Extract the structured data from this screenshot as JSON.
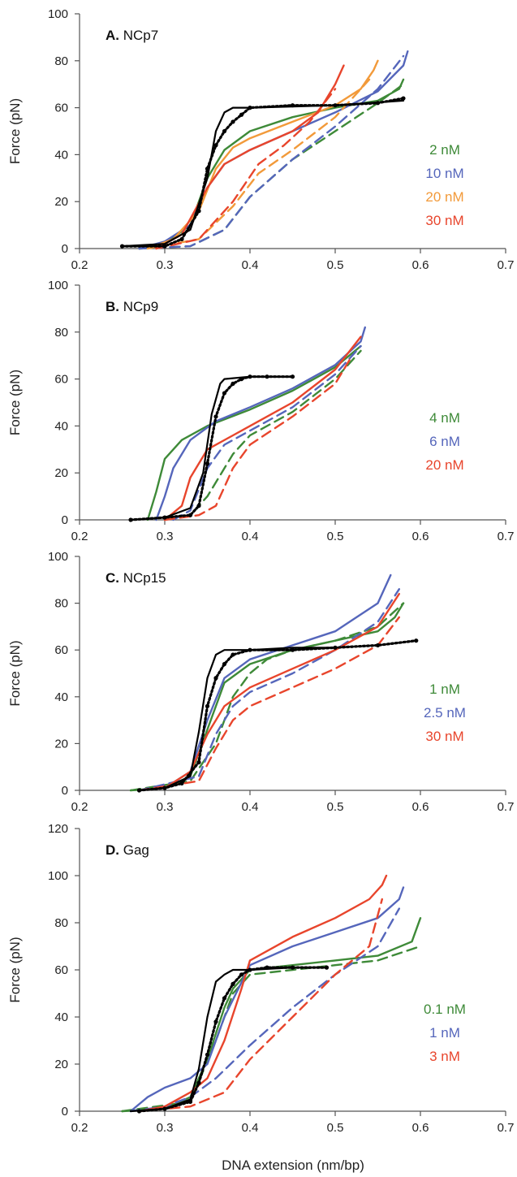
{
  "figure": {
    "xlabel": "DNA extension (nm/bp)",
    "ylabel": "Force (pN)"
  },
  "chart_data": [
    {
      "type": "line",
      "letter": "A.",
      "title": "NCp7",
      "xlim": [
        0.2,
        0.7
      ],
      "ylim": [
        0,
        100
      ],
      "xticks": [
        "0.2",
        "0.3",
        "0.4",
        "0.5",
        "0.6",
        "0.7"
      ],
      "yticks": [
        "0",
        "20",
        "40",
        "60",
        "80",
        "100"
      ],
      "grid": false,
      "legend_position": "right",
      "series": [
        {
          "name": "",
          "color": "#000000",
          "style": "solid",
          "x": [
            0.25,
            0.3,
            0.33,
            0.35,
            0.36,
            0.37,
            0.38,
            0.4,
            0.5,
            0.58
          ],
          "y": [
            1,
            2,
            8,
            30,
            50,
            58,
            60,
            60,
            61,
            63
          ]
        },
        {
          "name": "",
          "color": "#000000",
          "style": "dotted",
          "x": [
            0.25,
            0.3,
            0.32,
            0.34,
            0.35,
            0.36,
            0.37,
            0.38,
            0.39,
            0.4,
            0.45,
            0.5,
            0.55,
            0.58
          ],
          "y": [
            1,
            1,
            4,
            16,
            34,
            44,
            50,
            54,
            57,
            60,
            61,
            61,
            62,
            64
          ]
        },
        {
          "name": "2 nM",
          "color": "#3e8a38",
          "style": "solid",
          "x": [
            0.27,
            0.3,
            0.33,
            0.35,
            0.37,
            0.4,
            0.45,
            0.5,
            0.55,
            0.575,
            0.58
          ],
          "y": [
            0,
            2,
            10,
            30,
            42,
            50,
            56,
            60,
            63,
            68,
            72
          ]
        },
        {
          "name": "2 nM",
          "color": "#3e8a38",
          "style": "dashed",
          "x": [
            0.27,
            0.33,
            0.37,
            0.4,
            0.45,
            0.5,
            0.55,
            0.58
          ],
          "y": [
            0,
            1,
            8,
            22,
            38,
            50,
            62,
            70
          ]
        },
        {
          "name": "10 nM",
          "color": "#5566bb",
          "style": "solid",
          "x": [
            0.27,
            0.3,
            0.33,
            0.35,
            0.37,
            0.4,
            0.45,
            0.5,
            0.55,
            0.58,
            0.585
          ],
          "y": [
            0,
            3,
            10,
            26,
            36,
            42,
            50,
            58,
            67,
            78,
            84
          ]
        },
        {
          "name": "10 nM",
          "color": "#5566bb",
          "style": "dashed",
          "x": [
            0.27,
            0.33,
            0.37,
            0.4,
            0.45,
            0.5,
            0.55,
            0.58
          ],
          "y": [
            0,
            1,
            8,
            22,
            38,
            52,
            68,
            82
          ]
        },
        {
          "name": "20 nM",
          "color": "#f29a3a",
          "style": "solid",
          "x": [
            0.28,
            0.31,
            0.34,
            0.36,
            0.38,
            0.4,
            0.45,
            0.5,
            0.53,
            0.545,
            0.55
          ],
          "y": [
            0,
            4,
            16,
            34,
            43,
            47,
            54,
            61,
            68,
            76,
            80
          ]
        },
        {
          "name": "20 nM",
          "color": "#f29a3a",
          "style": "dashed",
          "x": [
            0.28,
            0.34,
            0.38,
            0.41,
            0.45,
            0.5,
            0.54
          ],
          "y": [
            0,
            4,
            18,
            32,
            42,
            56,
            72
          ]
        },
        {
          "name": "30 nM",
          "color": "#e8452c",
          "style": "solid",
          "x": [
            0.29,
            0.32,
            0.35,
            0.37,
            0.4,
            0.45,
            0.48,
            0.5,
            0.51
          ],
          "y": [
            0,
            6,
            26,
            36,
            42,
            50,
            58,
            70,
            78
          ]
        },
        {
          "name": "30 nM",
          "color": "#e8452c",
          "style": "dashed",
          "x": [
            0.29,
            0.34,
            0.38,
            0.41,
            0.44,
            0.47,
            0.5
          ],
          "y": [
            0,
            4,
            20,
            36,
            44,
            54,
            68
          ]
        }
      ],
      "legend": [
        {
          "label": "2 nM",
          "color": "#3e8a38"
        },
        {
          "label": "10 nM",
          "color": "#5566bb"
        },
        {
          "label": "20 nM",
          "color": "#f29a3a"
        },
        {
          "label": "30 nM",
          "color": "#e8452c"
        }
      ]
    },
    {
      "type": "line",
      "letter": "B.",
      "title": "NCp9",
      "xlim": [
        0.2,
        0.7
      ],
      "ylim": [
        0,
        100
      ],
      "xticks": [
        "0.2",
        "0.3",
        "0.4",
        "0.5",
        "0.6",
        "0.7"
      ],
      "yticks": [
        "0",
        "20",
        "40",
        "60",
        "80",
        "100"
      ],
      "grid": false,
      "legend_position": "right",
      "series": [
        {
          "name": "",
          "color": "#000000",
          "style": "solid",
          "x": [
            0.26,
            0.3,
            0.33,
            0.345,
            0.355,
            0.365,
            0.37,
            0.4,
            0.45
          ],
          "y": [
            0,
            1,
            5,
            20,
            45,
            58,
            60,
            61,
            61
          ]
        },
        {
          "name": "",
          "color": "#000000",
          "style": "dotted",
          "x": [
            0.26,
            0.3,
            0.33,
            0.34,
            0.35,
            0.36,
            0.37,
            0.38,
            0.39,
            0.4,
            0.42,
            0.45
          ],
          "y": [
            0,
            1,
            2,
            6,
            24,
            44,
            54,
            58,
            60,
            61,
            61,
            61
          ]
        },
        {
          "name": "4 nM",
          "color": "#3e8a38",
          "style": "solid",
          "x": [
            0.28,
            0.29,
            0.3,
            0.32,
            0.35,
            0.4,
            0.45,
            0.5,
            0.53
          ],
          "y": [
            0,
            12,
            26,
            34,
            40,
            47,
            55,
            65,
            74
          ]
        },
        {
          "name": "4 nM",
          "color": "#3e8a38",
          "style": "dashed",
          "x": [
            0.3,
            0.33,
            0.35,
            0.38,
            0.4,
            0.45,
            0.5,
            0.53
          ],
          "y": [
            0,
            2,
            10,
            28,
            36,
            46,
            60,
            72
          ]
        },
        {
          "name": "6 nM",
          "color": "#5566bb",
          "style": "solid",
          "x": [
            0.29,
            0.3,
            0.31,
            0.33,
            0.36,
            0.4,
            0.45,
            0.5,
            0.53,
            0.535
          ],
          "y": [
            0,
            10,
            22,
            34,
            42,
            48,
            56,
            66,
            76,
            82
          ]
        },
        {
          "name": "6 nM",
          "color": "#5566bb",
          "style": "dashed",
          "x": [
            0.31,
            0.33,
            0.35,
            0.37,
            0.4,
            0.45,
            0.5,
            0.53
          ],
          "y": [
            0,
            4,
            22,
            32,
            38,
            48,
            62,
            74
          ]
        },
        {
          "name": "20 nM",
          "color": "#e8452c",
          "style": "solid",
          "x": [
            0.3,
            0.32,
            0.33,
            0.35,
            0.38,
            0.4,
            0.45,
            0.5,
            0.53
          ],
          "y": [
            0,
            6,
            18,
            30,
            36,
            40,
            50,
            64,
            78
          ]
        },
        {
          "name": "20 nM",
          "color": "#e8452c",
          "style": "dashed",
          "x": [
            0.3,
            0.34,
            0.36,
            0.38,
            0.4,
            0.45,
            0.5,
            0.52
          ],
          "y": [
            0,
            2,
            6,
            22,
            32,
            44,
            58,
            70
          ]
        }
      ],
      "legend": [
        {
          "label": "4 nM",
          "color": "#3e8a38"
        },
        {
          "label": "6 nM",
          "color": "#5566bb"
        },
        {
          "label": "20 nM",
          "color": "#e8452c"
        }
      ]
    },
    {
      "type": "line",
      "letter": "C.",
      "title": "NCp15",
      "xlim": [
        0.2,
        0.7
      ],
      "ylim": [
        0,
        100
      ],
      "xticks": [
        "0.2",
        "0.3",
        "0.4",
        "0.5",
        "0.6",
        "0.7"
      ],
      "yticks": [
        "0",
        "20",
        "40",
        "60",
        "80",
        "100"
      ],
      "grid": false,
      "legend_position": "right",
      "series": [
        {
          "name": "",
          "color": "#000000",
          "style": "solid",
          "x": [
            0.27,
            0.3,
            0.33,
            0.34,
            0.35,
            0.36,
            0.37,
            0.4,
            0.45,
            0.5
          ],
          "y": [
            0,
            1,
            6,
            25,
            48,
            58,
            60,
            60,
            61,
            61
          ]
        },
        {
          "name": "",
          "color": "#000000",
          "style": "dotted",
          "x": [
            0.27,
            0.3,
            0.32,
            0.34,
            0.35,
            0.36,
            0.37,
            0.38,
            0.4,
            0.45,
            0.5,
            0.55,
            0.595
          ],
          "y": [
            0,
            1,
            3,
            12,
            36,
            48,
            54,
            58,
            60,
            60,
            61,
            62,
            64
          ]
        },
        {
          "name": "1 nM",
          "color": "#3e8a38",
          "style": "solid",
          "x": [
            0.26,
            0.3,
            0.33,
            0.35,
            0.37,
            0.4,
            0.45,
            0.5,
            0.55,
            0.57,
            0.58
          ],
          "y": [
            0,
            1,
            6,
            26,
            46,
            54,
            60,
            64,
            68,
            74,
            80
          ]
        },
        {
          "name": "1 nM",
          "color": "#3e8a38",
          "style": "dashed",
          "x": [
            0.26,
            0.33,
            0.36,
            0.38,
            0.4,
            0.42,
            0.45,
            0.5,
            0.55,
            0.58
          ],
          "y": [
            0,
            4,
            20,
            40,
            50,
            56,
            60,
            64,
            70,
            80
          ]
        },
        {
          "name": "2.5 nM",
          "color": "#5566bb",
          "style": "solid",
          "x": [
            0.27,
            0.3,
            0.33,
            0.35,
            0.37,
            0.4,
            0.45,
            0.5,
            0.55,
            0.565
          ],
          "y": [
            0,
            1,
            8,
            30,
            48,
            56,
            62,
            68,
            80,
            92
          ]
        },
        {
          "name": "2.5 nM",
          "color": "#5566bb",
          "style": "dashed",
          "x": [
            0.27,
            0.34,
            0.36,
            0.38,
            0.4,
            0.45,
            0.5,
            0.55,
            0.575
          ],
          "y": [
            0,
            6,
            24,
            36,
            42,
            50,
            60,
            72,
            86
          ]
        },
        {
          "name": "30 nM",
          "color": "#e8452c",
          "style": "solid",
          "x": [
            0.27,
            0.3,
            0.33,
            0.35,
            0.37,
            0.4,
            0.45,
            0.5,
            0.55,
            0.575
          ],
          "y": [
            0,
            1,
            8,
            24,
            36,
            44,
            52,
            60,
            70,
            84
          ]
        },
        {
          "name": "30 nM",
          "color": "#e8452c",
          "style": "dashed",
          "x": [
            0.27,
            0.34,
            0.36,
            0.38,
            0.4,
            0.45,
            0.5,
            0.55,
            0.575
          ],
          "y": [
            0,
            4,
            18,
            30,
            36,
            44,
            52,
            62,
            74
          ]
        }
      ],
      "legend": [
        {
          "label": "1 nM",
          "color": "#3e8a38"
        },
        {
          "label": "2.5 nM",
          "color": "#5566bb"
        },
        {
          "label": "30 nM",
          "color": "#e8452c"
        }
      ]
    },
    {
      "type": "line",
      "letter": "D.",
      "title": "Gag",
      "xlim": [
        0.2,
        0.7
      ],
      "ylim": [
        0,
        120
      ],
      "xticks": [
        "0.2",
        "0.3",
        "0.4",
        "0.5",
        "0.6",
        "0.7"
      ],
      "yticks": [
        "0",
        "20",
        "40",
        "60",
        "80",
        "100",
        "120"
      ],
      "grid": false,
      "legend_position": "right",
      "series": [
        {
          "name": "",
          "color": "#000000",
          "style": "solid",
          "x": [
            0.26,
            0.3,
            0.33,
            0.34,
            0.35,
            0.36,
            0.37,
            0.38,
            0.4,
            0.45,
            0.49
          ],
          "y": [
            0,
            1,
            5,
            18,
            40,
            55,
            58,
            60,
            60,
            61,
            61
          ]
        },
        {
          "name": "",
          "color": "#000000",
          "style": "dotted",
          "x": [
            0.27,
            0.3,
            0.33,
            0.34,
            0.35,
            0.36,
            0.37,
            0.38,
            0.39,
            0.4,
            0.42,
            0.45,
            0.49
          ],
          "y": [
            0,
            1,
            4,
            12,
            24,
            38,
            48,
            54,
            58,
            60,
            61,
            61,
            61
          ]
        },
        {
          "name": "0.1 nM",
          "color": "#3e8a38",
          "style": "solid",
          "x": [
            0.25,
            0.3,
            0.33,
            0.35,
            0.37,
            0.38,
            0.4,
            0.45,
            0.5,
            0.55,
            0.59,
            0.6
          ],
          "y": [
            0,
            1,
            6,
            22,
            44,
            52,
            60,
            62,
            64,
            66,
            72,
            82
          ]
        },
        {
          "name": "0.1 nM",
          "color": "#3e8a38",
          "style": "dashed",
          "x": [
            0.25,
            0.33,
            0.36,
            0.38,
            0.4,
            0.45,
            0.5,
            0.55,
            0.6
          ],
          "y": [
            0,
            4,
            30,
            50,
            58,
            60,
            62,
            64,
            70
          ]
        },
        {
          "name": "1 nM",
          "color": "#5566bb",
          "style": "solid",
          "x": [
            0.26,
            0.28,
            0.3,
            0.33,
            0.35,
            0.37,
            0.4,
            0.45,
            0.5,
            0.55,
            0.575,
            0.58
          ],
          "y": [
            0,
            6,
            10,
            14,
            20,
            40,
            62,
            70,
            76,
            82,
            90,
            95
          ]
        },
        {
          "name": "1 nM",
          "color": "#5566bb",
          "style": "dashed",
          "x": [
            0.26,
            0.3,
            0.33,
            0.36,
            0.4,
            0.45,
            0.5,
            0.55,
            0.575
          ],
          "y": [
            0,
            2,
            6,
            14,
            28,
            44,
            58,
            70,
            86
          ]
        },
        {
          "name": "3 nM",
          "color": "#e8452c",
          "style": "solid",
          "x": [
            0.27,
            0.3,
            0.33,
            0.35,
            0.37,
            0.39,
            0.4,
            0.45,
            0.5,
            0.54,
            0.555,
            0.56
          ],
          "y": [
            0,
            2,
            8,
            14,
            30,
            52,
            64,
            74,
            82,
            90,
            96,
            100
          ]
        },
        {
          "name": "3 nM",
          "color": "#e8452c",
          "style": "dashed",
          "x": [
            0.27,
            0.33,
            0.37,
            0.4,
            0.45,
            0.5,
            0.54,
            0.555
          ],
          "y": [
            0,
            2,
            8,
            22,
            40,
            58,
            70,
            90
          ]
        }
      ],
      "legend": [
        {
          "label": "0.1 nM",
          "color": "#3e8a38"
        },
        {
          "label": "1 nM",
          "color": "#5566bb"
        },
        {
          "label": "3 nM",
          "color": "#e8452c"
        }
      ]
    }
  ]
}
